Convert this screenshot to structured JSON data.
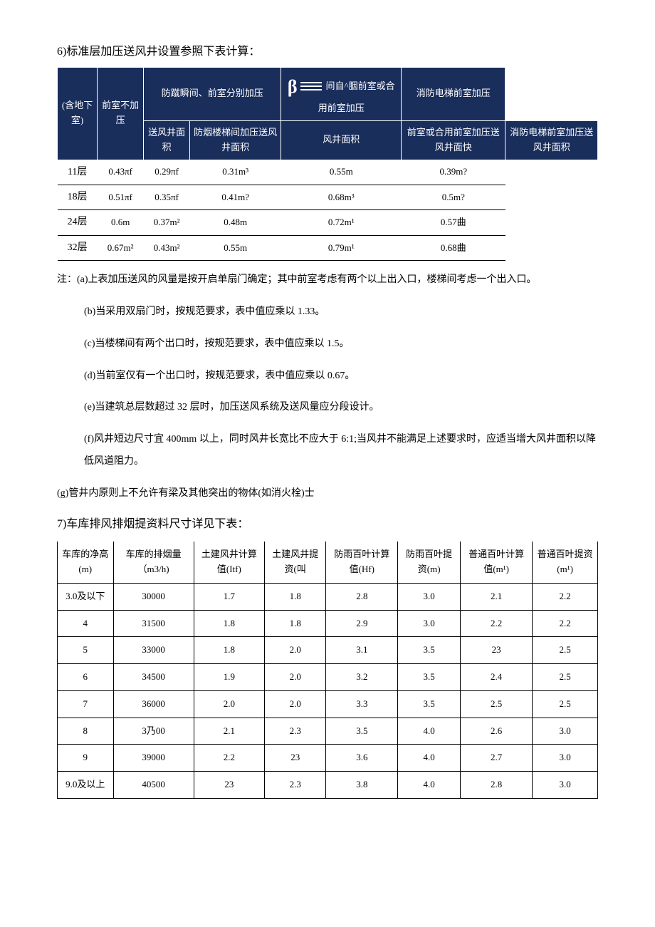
{
  "section6": {
    "heading": "6)标准层加压送风井设置参照下表计算：",
    "table": {
      "header_row1": {
        "col1": "(含地下室)",
        "col2": "前室不加压",
        "col3": "防蹴瞬间、前室分别加压",
        "col4_prefix": "β",
        "col4": "间自^胭前室或合用前室加压",
        "col5": "消防电梯前室加压"
      },
      "header_row2": {
        "c2": "送风井面积",
        "c3a": "防烟楼梯间加压送风井面积",
        "c3b": "风井面积",
        "c4": "前室或合用前室加压送风井面快",
        "c5": "消防电梯前室加压送风井面积"
      },
      "rows": [
        {
          "floor": "11层",
          "v1": "0.43πf",
          "v2": "0.29πf",
          "v3": "0.31m³",
          "v4": "0.55m",
          "v5": "0.39m?"
        },
        {
          "floor": "18层",
          "v1": "0.51πf",
          "v2": "0.35πf",
          "v3": "0.41m?",
          "v4": "0.68m³",
          "v5": "0.5m?"
        },
        {
          "floor": "24层",
          "v1": "0.6m",
          "v2": "0.37m²",
          "v3": "0.48m",
          "v4": "0.72m¹",
          "v5": "0.57曲"
        },
        {
          "floor": "32层",
          "v1": "0.67m²",
          "v2": "0.43m²",
          "v3": "0.55m",
          "v4": "0.79m¹",
          "v5": "0.68曲"
        }
      ]
    },
    "notes": {
      "intro": "注：(a)上表加压送风的风量是按开启单扇门确定；其中前室考虑有两个以上出入口，楼梯间考虑一个出入口。",
      "b": "(b)当采用双扇门时，按规范要求，表中值应乘以 1.33。",
      "c": "(c)当楼梯间有两个出口时，按规范要求，表中值应乘以 1.5。",
      "d": "(d)当前室仅有一个出口时，按规范要求，表中值应乘以 0.67。",
      "e": "(e)当建筑总层数超过 32 层时，加压送风系统及送风量应分段设计。",
      "f": "(f)风井短边尺寸宜 400mm 以上，同时风井长宽比不应大于 6:1;当风井不能满足上述要求时，应适当增大风井面积以降低风道阻力。",
      "g": "(g)管井内原则上不允许有梁及其他突出的物体(如消火栓)士"
    }
  },
  "section7": {
    "heading": "7)车库排风排烟提资料尺寸详见下表：",
    "table": {
      "headers": [
        "车库的净高(m)",
        "车库的排烟量（m3/h)",
        "土建风井计算值(Itf)",
        "土建风井提资(叫",
        "防雨百叶计算值(Hf)",
        "防雨百叶提资(m)",
        "普通百叶计算值(m¹)",
        "普通百叶提资(m¹)"
      ],
      "rows": [
        {
          "c": [
            "3.0及以下",
            "30000",
            "1.7",
            "1.8",
            "2.8",
            "3.0",
            "2.1",
            "2.2"
          ]
        },
        {
          "c": [
            "4",
            "31500",
            "1.8",
            "1.8",
            "2.9",
            "3.0",
            "2.2",
            "2.2"
          ]
        },
        {
          "c": [
            "5",
            "33000",
            "1.8",
            "2.0",
            "3.1",
            "3.5",
            "23",
            "2.5"
          ]
        },
        {
          "c": [
            "6",
            "34500",
            "1.9",
            "2.0",
            "3.2",
            "3.5",
            "2.4",
            "2.5"
          ]
        },
        {
          "c": [
            "7",
            "36000",
            "2.0",
            "2.0",
            "3.3",
            "3.5",
            "2.5",
            "2.5"
          ]
        },
        {
          "c": [
            "8",
            "3乃00",
            "2.1",
            "2.3",
            "3.5",
            "4.0",
            "2.6",
            "3.0"
          ]
        },
        {
          "c": [
            "9",
            "39000",
            "2.2",
            "23",
            "3.6",
            "4.0",
            "2.7",
            "3.0"
          ]
        },
        {
          "c": [
            "9.0及以上",
            "40500",
            "23",
            "2.3",
            "3.8",
            "4.0",
            "2.8",
            "3.0"
          ]
        }
      ]
    }
  }
}
